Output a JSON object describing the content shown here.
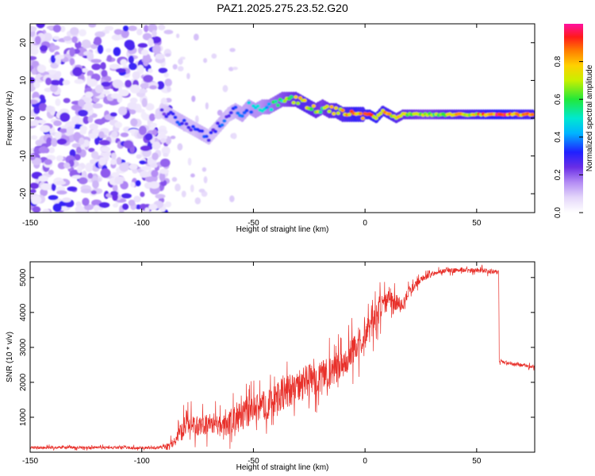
{
  "title": "PAZ1.2025.275.23.52.G20",
  "colors": {
    "snr_line": "#e8302a",
    "frame": "#000000",
    "spectrogram_noise": "#9b5cf0",
    "colormap": [
      "#ffffff",
      "#d8c4f7",
      "#9b5cf0",
      "#5a1fe0",
      "#2020ff",
      "#00b4ff",
      "#00e8d0",
      "#22e83a",
      "#c8f000",
      "#ffd000",
      "#ff7a00",
      "#ff1a1a",
      "#ff10a0"
    ]
  },
  "chart_data": [
    {
      "type": "heatmap",
      "title": "PAZ1.2025.275.23.52.G20",
      "xlabel": "Height of straight line (km)",
      "ylabel": "Frequency (Hz)",
      "xlim": [
        -150,
        76
      ],
      "ylim": [
        -25,
        25
      ],
      "xticks": [
        -150,
        -100,
        -50,
        0,
        50
      ],
      "yticks": [
        -20,
        -10,
        0,
        10,
        20
      ],
      "colorbar": {
        "label": "Normalized spectral amplitude",
        "range": [
          0,
          1
        ],
        "ticks": [
          "0.0",
          "0.2",
          "0.4",
          "0.6",
          "0.8"
        ]
      },
      "noise_region_km": [
        -150,
        -92
      ],
      "ridge": {
        "x": [
          -91,
          -88,
          -85,
          -82,
          -79,
          -76,
          -73,
          -70,
          -67,
          -64,
          -61,
          -58,
          -55,
          -52,
          -49,
          -46,
          -43,
          -40,
          -37,
          -34,
          -31,
          -28,
          -25,
          -22,
          -19,
          -16,
          -13,
          -10,
          -7,
          -4,
          -1,
          2,
          5,
          8,
          11,
          14,
          17,
          20,
          25,
          30,
          35,
          40,
          45,
          50,
          55,
          60,
          65,
          70,
          75
        ],
        "freq_hz": [
          2,
          1,
          0,
          -1,
          -2,
          -3,
          -4,
          -5,
          -3,
          -1,
          1,
          2,
          1,
          3,
          2,
          3,
          3,
          4,
          5,
          5,
          5,
          4,
          3,
          2,
          3,
          2,
          2,
          1,
          1,
          1,
          1,
          1,
          0,
          2,
          1,
          0,
          1,
          1,
          1,
          1,
          1,
          1,
          1,
          1,
          1,
          1,
          1,
          1,
          1
        ],
        "amplitude": [
          0.25,
          0.3,
          0.3,
          0.35,
          0.3,
          0.3,
          0.35,
          0.3,
          0.3,
          0.35,
          0.3,
          0.35,
          0.4,
          0.4,
          0.45,
          0.45,
          0.5,
          0.55,
          0.6,
          0.65,
          0.7,
          0.75,
          0.75,
          0.7,
          0.65,
          0.7,
          0.75,
          0.75,
          0.8,
          0.85,
          0.8,
          0.85,
          0.85,
          0.8,
          0.8,
          0.75,
          0.7,
          0.7,
          0.65,
          0.65,
          0.7,
          0.75,
          0.75,
          0.8,
          0.85,
          0.9,
          0.85,
          0.8,
          0.8
        ]
      }
    },
    {
      "type": "line",
      "xlabel": "Height of straight line (km)",
      "ylabel": "SNR (10 * v/v)",
      "xlim": [
        -150,
        76
      ],
      "ylim": [
        0,
        5450
      ],
      "xticks": [
        -150,
        -100,
        -50,
        0,
        50
      ],
      "yticks": [
        1000,
        2000,
        3000,
        4000,
        5000
      ],
      "series": [
        {
          "name": "SNR",
          "x": [
            -150,
            -140,
            -130,
            -120,
            -110,
            -100,
            -92,
            -88,
            -85,
            -82,
            -80,
            -76,
            -72,
            -68,
            -64,
            -60,
            -56,
            -52,
            -48,
            -44,
            -40,
            -36,
            -32,
            -28,
            -24,
            -20,
            -16,
            -12,
            -8,
            -4,
            0,
            4,
            8,
            12,
            16,
            20,
            24,
            28,
            32,
            36,
            40,
            44,
            48,
            52,
            56,
            59.9,
            60.1,
            64,
            68,
            72,
            76
          ],
          "y": [
            130,
            130,
            135,
            130,
            130,
            125,
            130,
            180,
            350,
            600,
            900,
            700,
            750,
            850,
            700,
            900,
            1050,
            1100,
            1300,
            1350,
            1500,
            1700,
            1800,
            1950,
            2100,
            2150,
            2250,
            2500,
            2700,
            3000,
            3300,
            3800,
            4300,
            4400,
            4200,
            4600,
            4900,
            5050,
            5150,
            5200,
            5200,
            5220,
            5200,
            5200,
            5180,
            5150,
            2600,
            2560,
            2520,
            2480,
            2450
          ],
          "noise": [
            60,
            60,
            60,
            60,
            60,
            60,
            60,
            120,
            250,
            420,
            450,
            420,
            420,
            450,
            460,
            500,
            520,
            560,
            600,
            620,
            650,
            680,
            680,
            680,
            700,
            650,
            650,
            650,
            650,
            620,
            600,
            600,
            500,
            450,
            300,
            200,
            150,
            120,
            100,
            100,
            100,
            100,
            100,
            100,
            100,
            100,
            70,
            70,
            70,
            70,
            70
          ]
        }
      ]
    }
  ]
}
